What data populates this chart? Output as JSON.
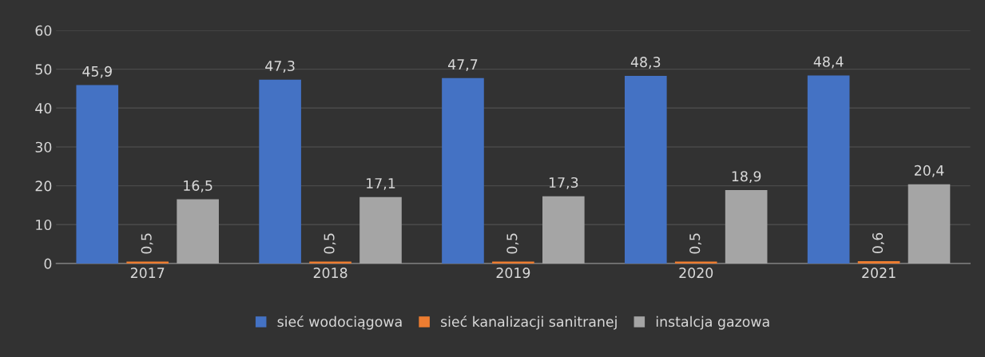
{
  "chart_data": {
    "type": "bar",
    "categories": [
      "2017",
      "2018",
      "2019",
      "2020",
      "2021"
    ],
    "series": [
      {
        "name": "sieć wodociągowa",
        "color": "#4472c4",
        "values": [
          45.9,
          47.3,
          47.7,
          48.3,
          48.4
        ],
        "value_labels": [
          "45,9",
          "47,3",
          "47,7",
          "48,3",
          "48,4"
        ]
      },
      {
        "name": "sieć kanalizacji sanitranej",
        "color": "#ed7d31",
        "values": [
          0.5,
          0.5,
          0.5,
          0.5,
          0.6
        ],
        "value_labels": [
          "0,5",
          "0,5",
          "0,5",
          "0,5",
          "0,6"
        ]
      },
      {
        "name": "instalcja gazowa",
        "color": "#a5a5a5",
        "values": [
          16.5,
          17.1,
          17.3,
          18.9,
          20.4
        ],
        "value_labels": [
          "16,5",
          "17,1",
          "17,3",
          "18,9",
          "20,4"
        ]
      }
    ],
    "ylim": [
      0,
      60
    ],
    "yticks": [
      0,
      10,
      20,
      30,
      40,
      50,
      60
    ],
    "grid": "y",
    "legend": "bottom"
  }
}
